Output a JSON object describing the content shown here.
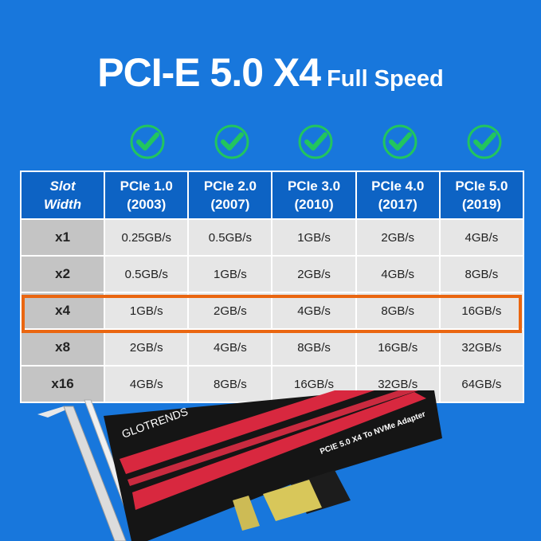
{
  "title": {
    "main": "PCI-E 5.0 X4",
    "sub": "Full Speed"
  },
  "colors": {
    "background": "#1877dc",
    "header": "#0d63c4",
    "highlight": "#ea6610",
    "check": "#22c55e"
  },
  "checks": [
    "check-icon",
    "check-icon",
    "check-icon",
    "check-icon",
    "check-icon"
  ],
  "table": {
    "header": [
      [
        "Slot",
        "Width"
      ],
      [
        "PCIe 1.0",
        "(2003)"
      ],
      [
        "PCIe 2.0",
        "(2007)"
      ],
      [
        "PCIe 3.0",
        "(2010)"
      ],
      [
        "PCIe 4.0",
        "(2017)"
      ],
      [
        "PCIe 5.0",
        "(2019)"
      ]
    ],
    "rows": [
      [
        "x1",
        "0.25GB/s",
        "0.5GB/s",
        "1GB/s",
        "2GB/s",
        "4GB/s"
      ],
      [
        "x2",
        "0.5GB/s",
        "1GB/s",
        "2GB/s",
        "4GB/s",
        "8GB/s"
      ],
      [
        "x4",
        "1GB/s",
        "2GB/s",
        "4GB/s",
        "8GB/s",
        "16GB/s"
      ],
      [
        "x8",
        "2GB/s",
        "4GB/s",
        "8GB/s",
        "16GB/s",
        "32GB/s"
      ],
      [
        "x16",
        "4GB/s",
        "8GB/s",
        "16GB/s",
        "32GB/s",
        "64GB/s"
      ]
    ],
    "highlighted_row": "x4"
  },
  "product": {
    "brand": "GLOTRENDS",
    "label": "PCIE 5.0 X4 To NVMe Adapter"
  }
}
